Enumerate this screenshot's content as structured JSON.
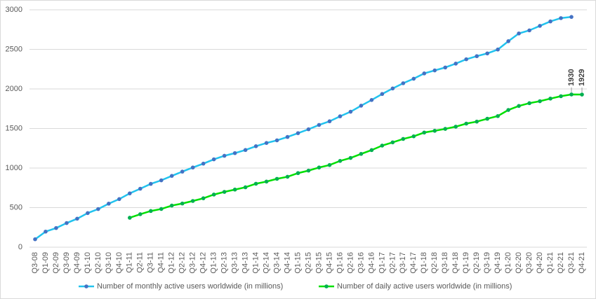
{
  "chart_data": {
    "type": "line",
    "categories": [
      "Q3-08",
      "Q1-09",
      "Q2-09",
      "Q3-09",
      "Q4-09",
      "Q1-10",
      "Q2-10",
      "Q3-10",
      "Q4-10",
      "Q1-11",
      "Q2-11",
      "Q3-11",
      "Q4-11",
      "Q1-12",
      "Q2-12",
      "Q3-12",
      "Q4-12",
      "Q1-13",
      "Q2-13",
      "Q3-13",
      "Q4-13",
      "Q1-14",
      "Q2-14",
      "Q3-14",
      "Q4-14",
      "Q1-15",
      "Q2-15",
      "Q3-15",
      "Q4-15",
      "Q1-16",
      "Q2-16",
      "Q3-16",
      "Q4-16",
      "Q1-17",
      "Q2-17",
      "Q3-17",
      "Q4-17",
      "Q1-18",
      "Q2-18",
      "Q3-18",
      "Q4-18",
      "Q1-19",
      "Q2-19",
      "Q3-19",
      "Q4-19",
      "Q1-20",
      "Q2-20",
      "Q3-20",
      "Q4-20",
      "Q1-21",
      "Q2-21",
      "Q3-21",
      "Q4-21"
    ],
    "series": [
      {
        "name": "Number of monthly active users worldwide (in millions)",
        "color": "#22c3ee",
        "marker_color": "#4472c4",
        "values": [
          100,
          197,
          242,
          305,
          360,
          431,
          482,
          550,
          608,
          680,
          739,
          800,
          845,
          901,
          955,
          1007,
          1056,
          1110,
          1155,
          1189,
          1228,
          1276,
          1317,
          1350,
          1393,
          1441,
          1490,
          1545,
          1591,
          1654,
          1712,
          1788,
          1860,
          1936,
          2006,
          2072,
          2129,
          2196,
          2234,
          2271,
          2320,
          2375,
          2414,
          2449,
          2498,
          2603,
          2701,
          2740,
          2797,
          2853,
          2895,
          2910,
          null
        ]
      },
      {
        "name": "Number of daily active users worldwide (in millions)",
        "color": "#00e000",
        "marker_color": "#00b050",
        "values": [
          null,
          null,
          null,
          null,
          null,
          null,
          null,
          null,
          null,
          372,
          417,
          457,
          483,
          526,
          552,
          584,
          618,
          665,
          699,
          728,
          757,
          802,
          829,
          864,
          890,
          936,
          968,
          1007,
          1038,
          1090,
          1128,
          1179,
          1227,
          1284,
          1325,
          1368,
          1401,
          1449,
          1471,
          1495,
          1523,
          1562,
          1587,
          1623,
          1657,
          1734,
          1785,
          1820,
          1845,
          1878,
          1908,
          1930,
          1929
        ],
        "value_labels": [
          null,
          null,
          null,
          null,
          null,
          null,
          null,
          null,
          null,
          null,
          null,
          null,
          null,
          null,
          null,
          null,
          null,
          null,
          null,
          null,
          null,
          null,
          null,
          null,
          null,
          null,
          null,
          null,
          null,
          null,
          null,
          null,
          null,
          null,
          null,
          null,
          null,
          null,
          null,
          null,
          null,
          null,
          null,
          null,
          null,
          null,
          null,
          null,
          null,
          null,
          null,
          "1930",
          "1929"
        ]
      }
    ],
    "ylim": [
      0,
      3000
    ],
    "yticks": [
      0,
      500,
      1000,
      1500,
      2000,
      2500,
      3000
    ],
    "grid": true,
    "legend": "bottom"
  }
}
